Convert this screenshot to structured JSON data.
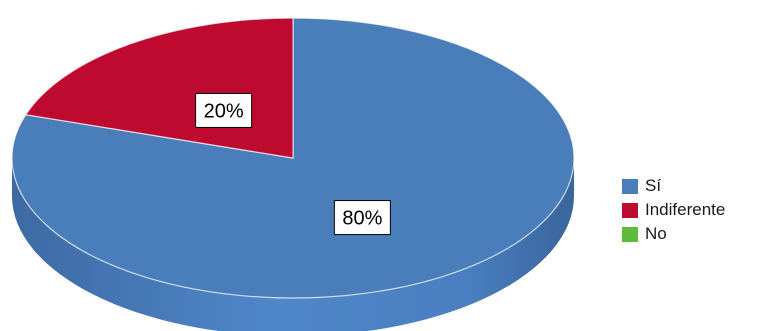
{
  "chart_data": {
    "type": "pie",
    "title": "",
    "categories": [
      "Sí",
      "Indiferente",
      "No"
    ],
    "values": [
      80,
      20,
      0
    ],
    "value_labels": [
      "80%",
      "20%",
      ""
    ],
    "colors": [
      "#4a7ebb",
      "#be0a2f",
      "#5dbb3a"
    ],
    "legend_position": "right",
    "style": "3d-tilted"
  }
}
